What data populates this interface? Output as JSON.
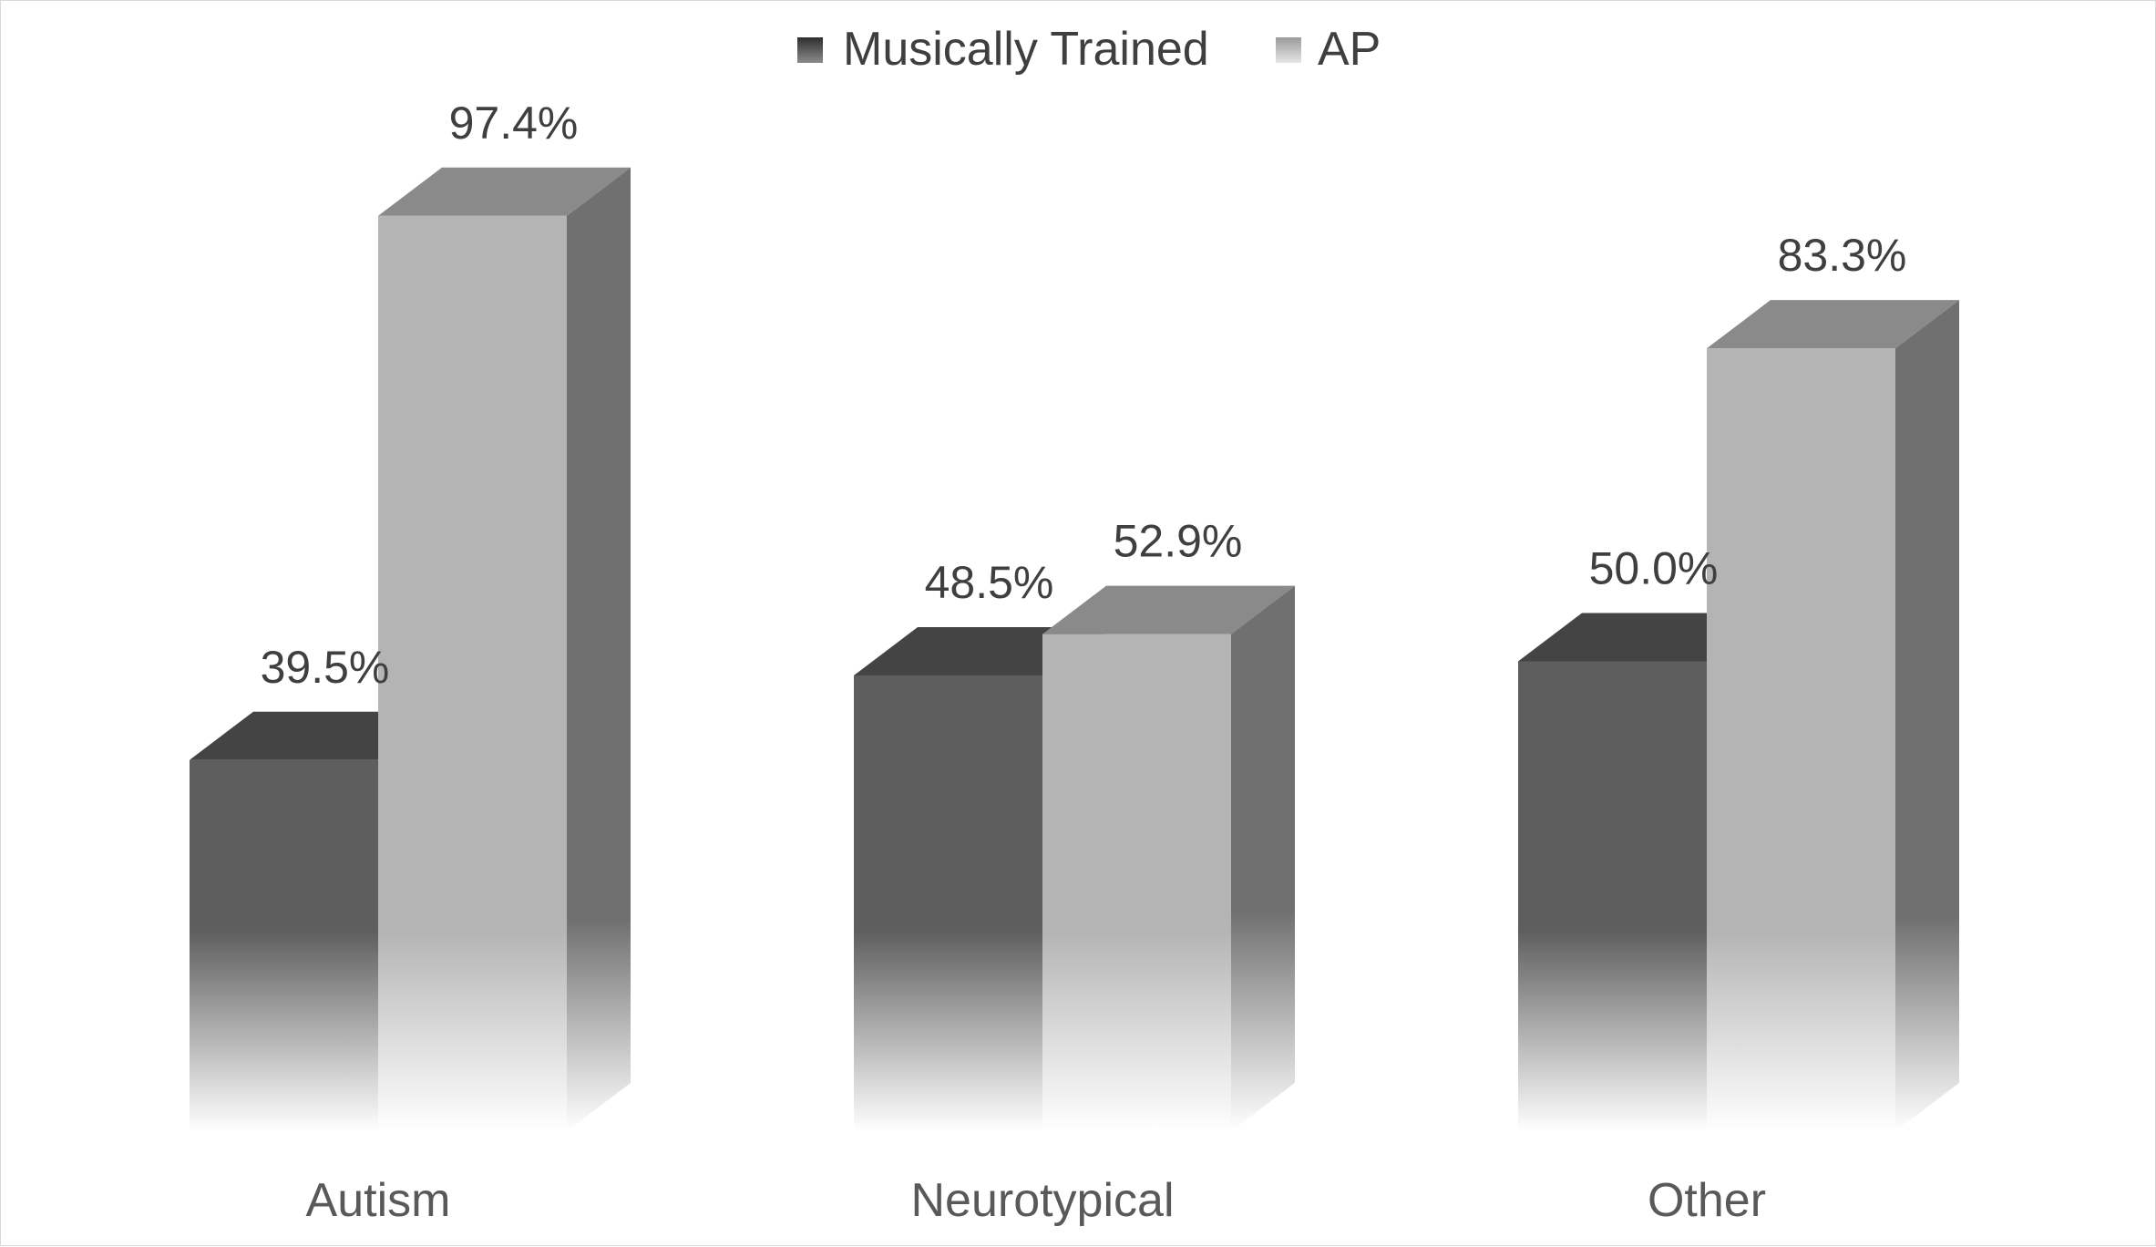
{
  "chart_data": {
    "type": "bar",
    "subtype": "3d-clustered-column",
    "title": "",
    "xlabel": "",
    "ylabel": "",
    "categories": [
      "Autism",
      "Neurotypical",
      "Other"
    ],
    "series": [
      {
        "name": "Musically Trained",
        "values": [
          39.5,
          48.5,
          50.0
        ],
        "labels": [
          "39.5%",
          "48.5%",
          "50.0%"
        ],
        "color": "#5e5e5e"
      },
      {
        "name": "AP",
        "values": [
          97.4,
          52.9,
          83.3
        ],
        "labels": [
          "97.4%",
          "52.9%",
          "83.3%"
        ],
        "color": "#b4b4b4"
      }
    ],
    "ylim": [
      0,
      100
    ],
    "grid": false,
    "legend": "top-center",
    "value_format": "percent"
  }
}
